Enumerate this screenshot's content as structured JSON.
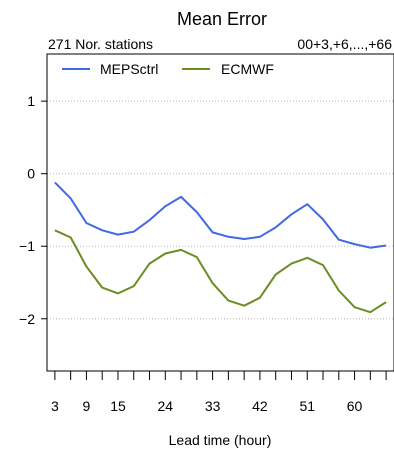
{
  "chart_data": {
    "type": "line",
    "title": "Mean Error",
    "subtitle_left": "271 Nor. stations",
    "subtitle_right": "00+3,+6,...,+66",
    "xlabel": "Lead time (hour)",
    "ylabel": "",
    "xlim": [
      1.5,
      67.5
    ],
    "ylim": [
      -2.72,
      1.65
    ],
    "x_tick_labels": [
      "3",
      "9",
      "15",
      "24",
      "33",
      "42",
      "51",
      "60"
    ],
    "y_tick_labels": [
      "1",
      "0",
      "−1",
      "−2"
    ],
    "y_tick_values": [
      1,
      0,
      -1,
      -2
    ],
    "grid": "horizontal dotted",
    "legend_position": "top-left",
    "x": [
      3,
      6,
      9,
      12,
      15,
      18,
      21,
      24,
      27,
      30,
      33,
      36,
      39,
      42,
      45,
      48,
      51,
      54,
      57,
      60,
      63,
      66
    ],
    "series": [
      {
        "name": "MEPSctrl",
        "color": "#4169e1",
        "values": [
          -0.12,
          -0.34,
          -0.68,
          -0.78,
          -0.84,
          -0.8,
          -0.64,
          -0.45,
          -0.32,
          -0.53,
          -0.81,
          -0.87,
          -0.9,
          -0.87,
          -0.74,
          -0.56,
          -0.42,
          -0.63,
          -0.91,
          -0.97,
          -1.02,
          -0.99
        ]
      },
      {
        "name": "ECMWF",
        "color": "#6b8e23",
        "values": [
          -0.78,
          -0.88,
          -1.28,
          -1.57,
          -1.65,
          -1.55,
          -1.24,
          -1.1,
          -1.05,
          -1.15,
          -1.51,
          -1.75,
          -1.82,
          -1.71,
          -1.39,
          -1.24,
          -1.16,
          -1.26,
          -1.61,
          -1.84,
          -1.91,
          -1.77
        ]
      }
    ]
  }
}
